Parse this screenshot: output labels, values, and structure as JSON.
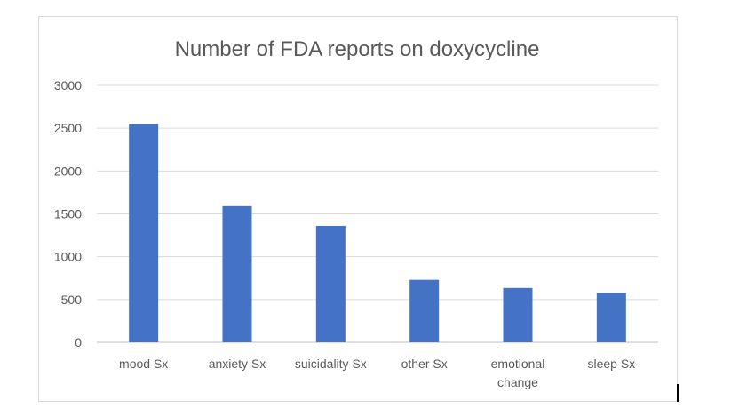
{
  "chart_data": {
    "type": "bar",
    "title": "Number of FDA reports on doxycycline",
    "xlabel": "",
    "ylabel": "",
    "categories": [
      "mood Sx",
      "anxiety Sx",
      "suicidality Sx",
      "other Sx",
      "emotional change",
      "sleep Sx"
    ],
    "category_lines": [
      [
        "mood Sx"
      ],
      [
        "anxiety Sx"
      ],
      [
        "suicidality Sx"
      ],
      [
        "other Sx"
      ],
      [
        "emotional",
        "change"
      ],
      [
        "sleep Sx"
      ]
    ],
    "values": [
      2550,
      1590,
      1360,
      730,
      635,
      580
    ],
    "ylim": [
      0,
      3000
    ],
    "yticks": [
      0,
      500,
      1000,
      1500,
      2000,
      2500,
      3000
    ],
    "grid": true,
    "legend": "none",
    "bar_color": "#4472c4",
    "grid_color": "#d9d9d9"
  }
}
